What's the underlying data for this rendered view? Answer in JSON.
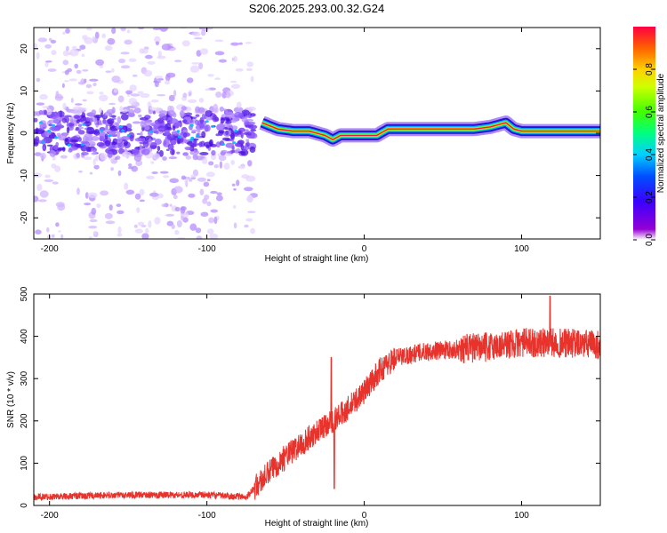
{
  "title": "S206.2025.293.00.32.G24",
  "colors": {
    "snr_line": "#e8322c",
    "cloud": "#7a3cff",
    "background": "#ffffff"
  },
  "chart_data": [
    {
      "type": "heatmap",
      "title": "S206.2025.293.00.32.G24",
      "xlabel": "Height of straight line (km)",
      "ylabel": "Frequency (Hz)",
      "xlim": [
        -210,
        150
      ],
      "ylim": [
        -25,
        25
      ],
      "xticks": [
        -200,
        -100,
        0,
        100
      ],
      "yticks": [
        -20,
        -10,
        0,
        10,
        20
      ],
      "colorbar": {
        "label": "Normalized spectral amplitude",
        "range": [
          0,
          1
        ],
        "ticks": [
          0.0,
          0.2,
          0.4,
          0.6,
          0.8
        ]
      },
      "ridge": {
        "x": [
          -65,
          -55,
          -45,
          -35,
          -25,
          -20,
          -15,
          -8,
          0,
          8,
          15,
          30,
          50,
          70,
          80,
          90,
          95,
          100,
          110,
          130,
          150
        ],
        "freq": [
          2.5,
          1.0,
          0.5,
          0.5,
          -0.5,
          -1.5,
          -0.5,
          -0.5,
          -0.5,
          -0.5,
          1.0,
          1.0,
          1.0,
          1.0,
          1.5,
          2.5,
          1.0,
          0.5,
          0.5,
          0.5,
          0.5
        ]
      },
      "noise_region": {
        "x_range": [
          -210,
          -70
        ],
        "freq_spread": 25
      }
    },
    {
      "type": "line",
      "xlabel": "Height of straight line (km)",
      "ylabel": "SNR (10 * v/v)",
      "xlim": [
        -210,
        150
      ],
      "ylim": [
        0,
        500
      ],
      "xticks": [
        -200,
        -100,
        0,
        100
      ],
      "yticks": [
        0,
        100,
        200,
        300,
        400,
        500
      ],
      "trend": {
        "x": [
          -210,
          -150,
          -100,
          -75,
          -65,
          -55,
          -45,
          -35,
          -25,
          -20,
          -10,
          0,
          10,
          20,
          40,
          60,
          80,
          100,
          120,
          150
        ],
        "y": [
          20,
          25,
          25,
          20,
          60,
          100,
          130,
          160,
          190,
          200,
          230,
          270,
          320,
          350,
          365,
          370,
          375,
          385,
          385,
          380
        ]
      },
      "spikes": [
        {
          "x": -21,
          "y": 350
        },
        {
          "x": -19,
          "y": 40
        },
        {
          "x": 118,
          "y": 495
        }
      ]
    }
  ],
  "ticklabels": {
    "heat_x": [
      "-200",
      "-100",
      "0",
      "100"
    ],
    "heat_y": [
      "20",
      "10",
      "0",
      "-10",
      "-20"
    ],
    "snr_x": [
      "-200",
      "-100",
      "0",
      "100"
    ],
    "snr_y": [
      "0",
      "100",
      "200",
      "300",
      "400",
      "500"
    ],
    "colorbar": [
      "0.0",
      "0.2",
      "0.4",
      "0.6",
      "0.8"
    ]
  }
}
